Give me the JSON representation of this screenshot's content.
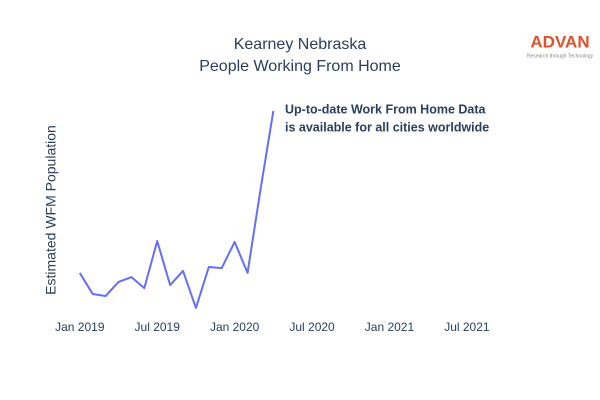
{
  "chart_data": {
    "type": "line",
    "title": "Kearney Nebraska",
    "subtitle": "People Working From Home",
    "y_label": "Estimated WFM Population",
    "annotation": [
      "Up-to-date Work From Home Data",
      "is available for all cities worldwide"
    ],
    "logo": {
      "name": "ADVAN",
      "tagline": "Research through Technology"
    },
    "x": [
      "2019-01",
      "2019-02",
      "2019-03",
      "2019-04",
      "2019-05",
      "2019-06",
      "2019-07",
      "2019-08",
      "2019-09",
      "2019-10",
      "2019-11",
      "2019-12",
      "2020-01",
      "2020-02",
      "2020-03",
      "2020-04"
    ],
    "series": [
      {
        "name": "Estimated WFM Population",
        "color": "#636efa",
        "values": [
          21.4,
          11.8,
          10.9,
          17.3,
          19.5,
          14.5,
          35.9,
          15.9,
          22.3,
          5.5,
          24.1,
          23.6,
          35.5,
          21.4,
          59.1,
          95
        ]
      }
    ],
    "xlim": [
      "2018-11",
      "2022-04"
    ],
    "xticks": [
      {
        "value": "2019-01",
        "label": "Jan 2019"
      },
      {
        "value": "2019-07",
        "label": "Jul 2019"
      },
      {
        "value": "2020-01",
        "label": "Jan 2020"
      },
      {
        "value": "2020-07",
        "label": "Jul 2020"
      },
      {
        "value": "2021-01",
        "label": "Jan 2021"
      },
      {
        "value": "2021-07",
        "label": "Jul 2021"
      }
    ],
    "ylim": [
      0,
      100
    ]
  }
}
